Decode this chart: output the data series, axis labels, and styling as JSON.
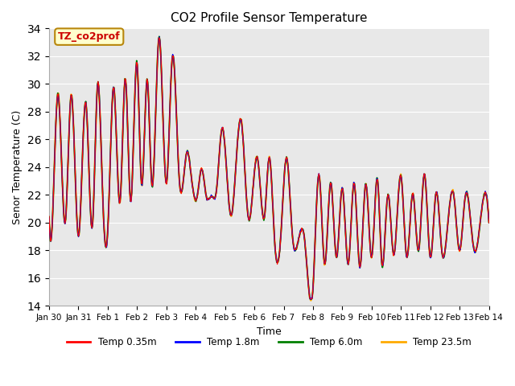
{
  "title": "CO2 Profile Sensor Temperature",
  "ylabel": "Senor Temperature (C)",
  "xlabel": "Time",
  "ylim": [
    14,
    34
  ],
  "legend_label": "TZ_co2prof",
  "legend_bg": "#ffffcc",
  "legend_border": "#b8860b",
  "legend_text_color": "#cc0000",
  "bg_color": "#e8e8e8",
  "series_colors": [
    "red",
    "blue",
    "green",
    "#ffaa00"
  ],
  "series_labels": [
    "Temp 0.35m",
    "Temp 1.8m",
    "Temp 6.0m",
    "Temp 23.5m"
  ],
  "x_tick_labels": [
    "Jan 30",
    "Jan 31",
    "Feb 1",
    "Feb 2",
    "Feb 3",
    "Feb 4",
    "Feb 5",
    "Feb 6",
    "Feb 7",
    "Feb 8",
    "Feb 9",
    "Feb 10",
    "Feb 11",
    "Feb 12",
    "Feb 13",
    "Feb 14"
  ],
  "x_tick_positions": [
    0,
    1,
    2,
    3,
    4,
    5,
    6,
    7,
    8,
    9,
    10,
    11,
    12,
    13,
    14,
    15
  ]
}
